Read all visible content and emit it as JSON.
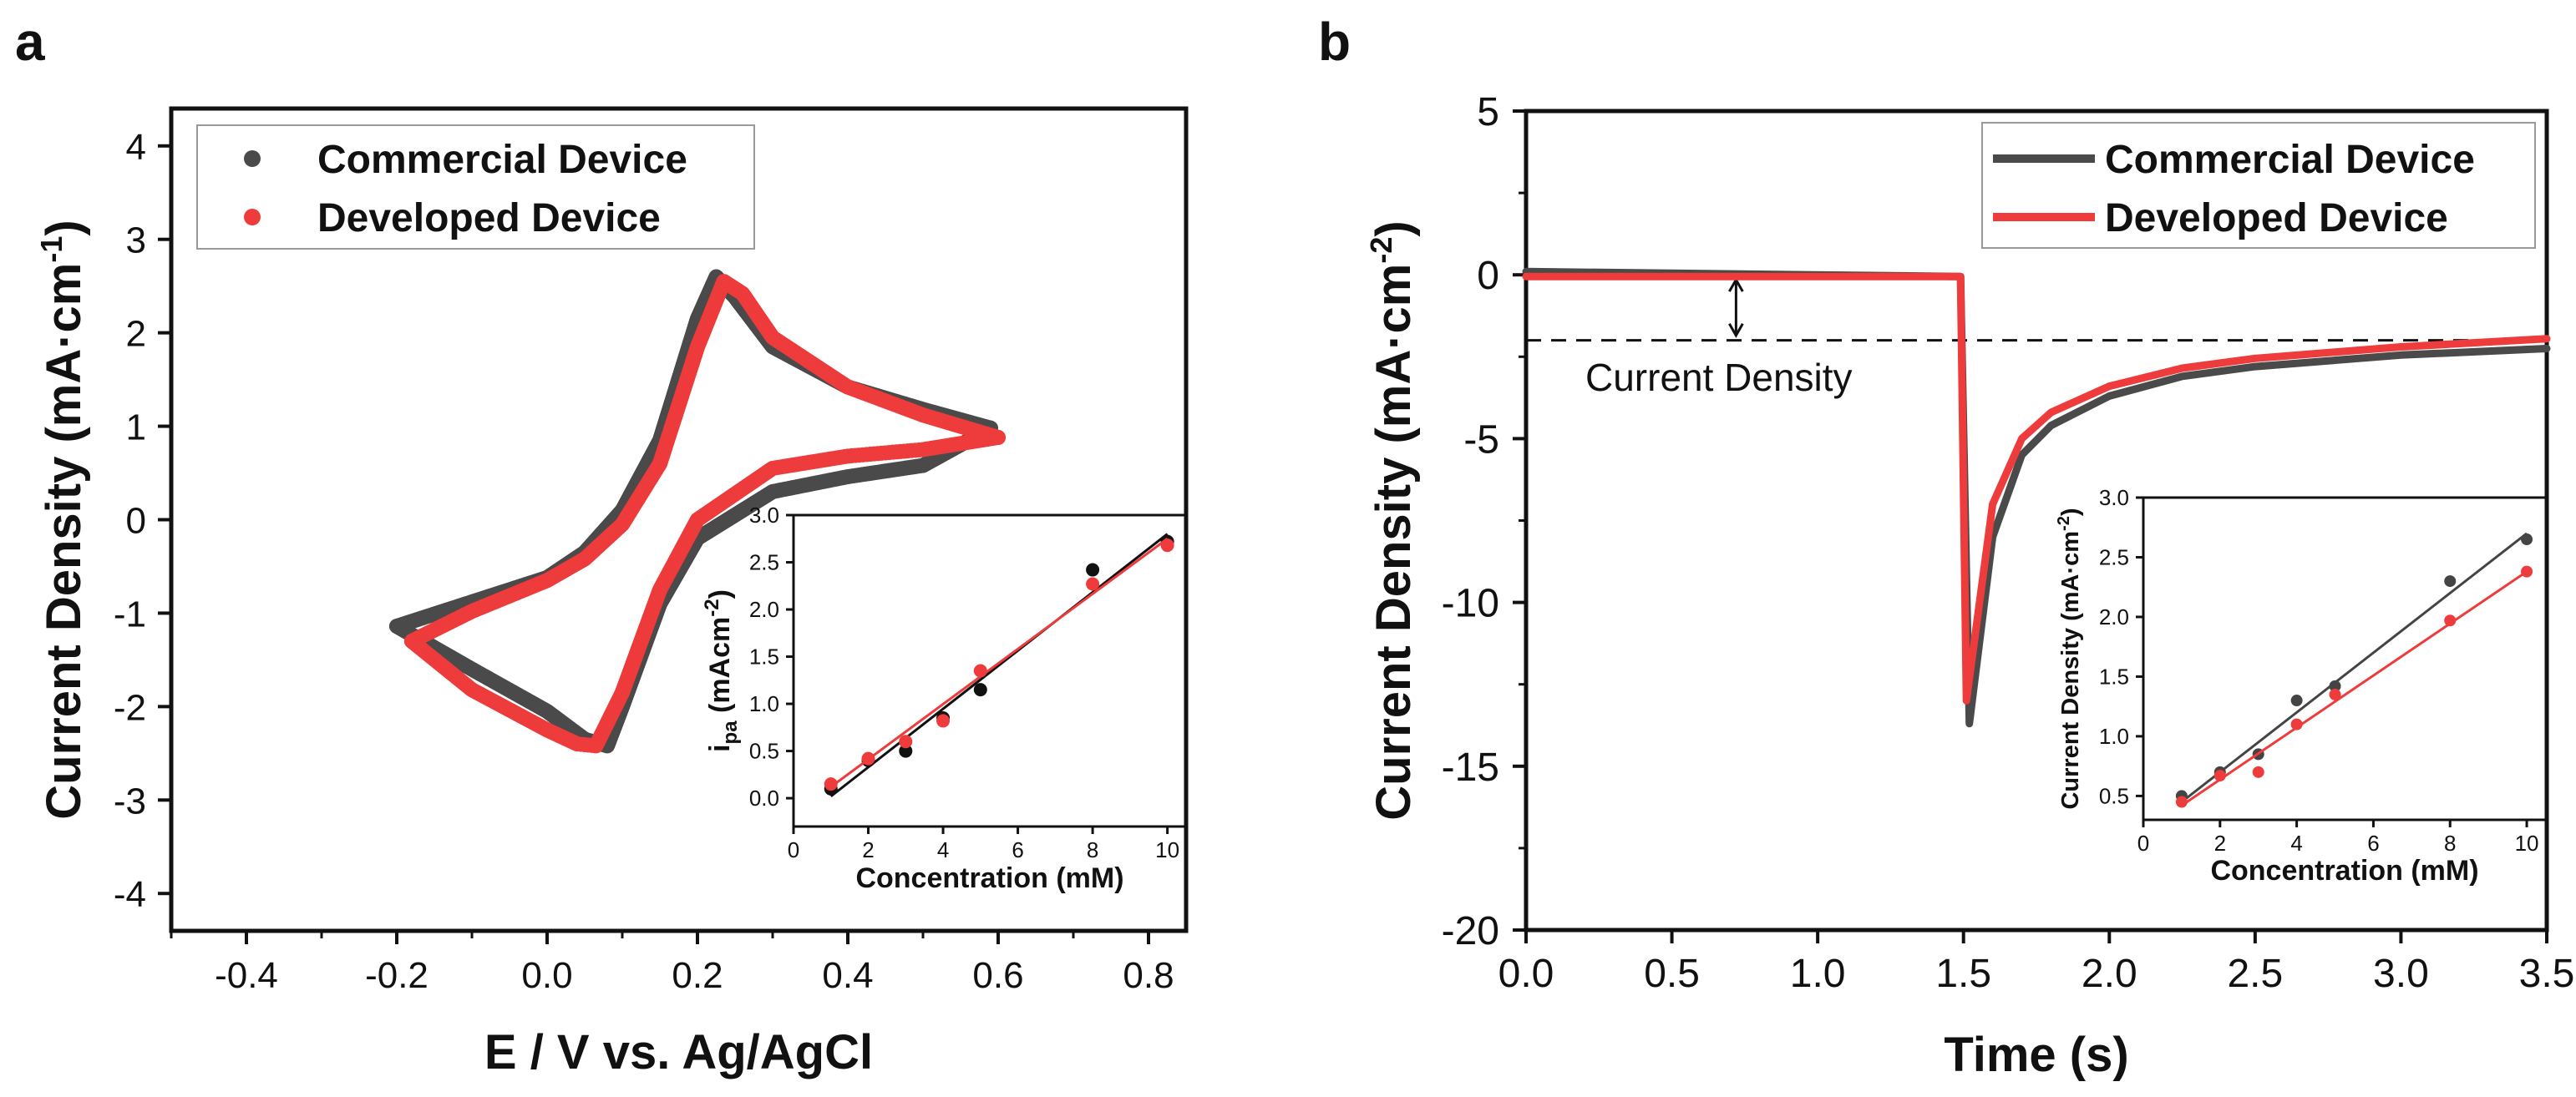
{
  "colors": {
    "commercial": "#4a4a4a",
    "developed": "#ee3b3b",
    "inset_black": "#111111",
    "inset_gray": "#444444",
    "dashed": "#111111"
  },
  "panel_a": {
    "letter": "a"
  },
  "panel_b": {
    "letter": "b"
  },
  "chart_data": [
    {
      "id": "a_main",
      "type": "scatter",
      "title": "",
      "xlabel": "E / V vs. Ag/AgCl",
      "ylabel": "Current Density (mA·cm",
      "ylabel_sup": "-1",
      "ylabel_close": ")",
      "xlim": [
        -0.5,
        0.85
      ],
      "ylim": [
        -4.4,
        4.4
      ],
      "xticks": [
        -0.4,
        -0.2,
        0.0,
        0.2,
        0.4,
        0.6,
        0.8
      ],
      "xtick_labels": [
        "-0.4",
        "-0.2",
        "0.0",
        "0.2",
        "0.4",
        "0.6",
        "0.8"
      ],
      "yticks": [
        -4,
        -3,
        -2,
        -1,
        0,
        1,
        2,
        3,
        4
      ],
      "ytick_labels": [
        "-4",
        "-3",
        "-2",
        "-1",
        "0",
        "1",
        "2",
        "3",
        "4"
      ],
      "legend_position": "top-left",
      "series": [
        {
          "name": "Commercial Device",
          "color": "#4a4a4a",
          "forward": [
            [
              -0.2,
              -1.14
            ],
            [
              -0.1,
              -0.88
            ],
            [
              0.0,
              -0.62
            ],
            [
              0.05,
              -0.35
            ],
            [
              0.1,
              0.1
            ],
            [
              0.15,
              0.85
            ],
            [
              0.2,
              2.15
            ],
            [
              0.225,
              2.6
            ],
            [
              0.25,
              2.38
            ],
            [
              0.3,
              1.85
            ],
            [
              0.4,
              1.42
            ],
            [
              0.5,
              1.18
            ],
            [
              0.59,
              0.98
            ]
          ],
          "reverse": [
            [
              0.59,
              0.98
            ],
            [
              0.5,
              0.58
            ],
            [
              0.4,
              0.46
            ],
            [
              0.3,
              0.3
            ],
            [
              0.2,
              -0.2
            ],
            [
              0.15,
              -0.9
            ],
            [
              0.1,
              -2.0
            ],
            [
              0.08,
              -2.42
            ],
            [
              0.05,
              -2.35
            ],
            [
              0.0,
              -2.05
            ],
            [
              -0.1,
              -1.6
            ],
            [
              -0.2,
              -1.14
            ]
          ]
        },
        {
          "name": "Developed Device",
          "color": "#ee3b3b",
          "forward": [
            [
              -0.18,
              -1.3
            ],
            [
              -0.1,
              -0.98
            ],
            [
              0.0,
              -0.65
            ],
            [
              0.05,
              -0.42
            ],
            [
              0.1,
              -0.05
            ],
            [
              0.15,
              0.6
            ],
            [
              0.2,
              1.85
            ],
            [
              0.235,
              2.55
            ],
            [
              0.26,
              2.42
            ],
            [
              0.3,
              1.95
            ],
            [
              0.4,
              1.42
            ],
            [
              0.5,
              1.12
            ],
            [
              0.6,
              0.88
            ]
          ],
          "reverse": [
            [
              0.6,
              0.88
            ],
            [
              0.5,
              0.75
            ],
            [
              0.4,
              0.68
            ],
            [
              0.3,
              0.55
            ],
            [
              0.2,
              0.0
            ],
            [
              0.15,
              -0.75
            ],
            [
              0.1,
              -1.85
            ],
            [
              0.065,
              -2.42
            ],
            [
              0.04,
              -2.4
            ],
            [
              0.0,
              -2.25
            ],
            [
              -0.1,
              -1.82
            ],
            [
              -0.18,
              -1.3
            ]
          ]
        }
      ]
    },
    {
      "id": "a_inset",
      "type": "scatter",
      "xlabel": "Concentration (mM)",
      "ylabel_main": "i",
      "ylabel_sub": "pa",
      "ylabel_rest": " (mAcm",
      "ylabel_sup": "-2",
      "ylabel_close": ")",
      "xlim": [
        0,
        10.5
      ],
      "ylim": [
        -0.3,
        3.0
      ],
      "xticks": [
        0,
        2,
        4,
        6,
        8,
        10
      ],
      "xtick_labels": [
        "0",
        "2",
        "4",
        "6",
        "8",
        "10"
      ],
      "yticks": [
        0.0,
        0.5,
        1.0,
        1.5,
        2.0,
        2.5,
        3.0
      ],
      "ytick_labels": [
        "0.0",
        "0.5",
        "1.0",
        "1.5",
        "2.0",
        "2.5",
        "3.0"
      ],
      "x": [
        1,
        2,
        3,
        4,
        5,
        8,
        10
      ],
      "series": [
        {
          "name": "Commercial Device",
          "color": "#111111",
          "values": [
            0.1,
            0.4,
            0.5,
            0.85,
            1.15,
            2.42,
            2.72
          ],
          "fit": [
            [
              1,
              0.02
            ],
            [
              10,
              2.8
            ]
          ]
        },
        {
          "name": "Developed Device",
          "color": "#ee3b3b",
          "values": [
            0.15,
            0.42,
            0.6,
            0.82,
            1.35,
            2.27,
            2.68
          ],
          "fit": [
            [
              1,
              0.12
            ],
            [
              10,
              2.75
            ]
          ]
        }
      ]
    },
    {
      "id": "b_main",
      "type": "line",
      "xlabel": "Time (s)",
      "ylabel": "Current Density (mA·cm",
      "ylabel_sup": "-2",
      "ylabel_close": ")",
      "xlim": [
        0,
        3.5
      ],
      "ylim": [
        -20,
        5
      ],
      "xticks": [
        0,
        0.5,
        1.0,
        1.5,
        2.0,
        2.5,
        3.0,
        3.5
      ],
      "xtick_labels": [
        "0.0",
        "0.5",
        "1.0",
        "1.5",
        "2.0",
        "2.5",
        "3.0",
        "3.5"
      ],
      "yticks": [
        5,
        0,
        -5,
        -10,
        -15,
        -20
      ],
      "ytick_labels": [
        "5",
        "0",
        "-5",
        "-10",
        "-15",
        "-20"
      ],
      "legend_position": "top-right",
      "annotation": {
        "text": "Current Density",
        "dashed_y": -2.0,
        "arrow_x": 0.72
      },
      "series": [
        {
          "name": "Commercial Device",
          "color": "#4a4a4a",
          "points": [
            [
              0,
              0.1
            ],
            [
              1.49,
              -0.05
            ],
            [
              1.52,
              -13.7
            ],
            [
              1.6,
              -8.0
            ],
            [
              1.7,
              -5.5
            ],
            [
              1.8,
              -4.6
            ],
            [
              2.0,
              -3.7
            ],
            [
              2.25,
              -3.1
            ],
            [
              2.5,
              -2.8
            ],
            [
              3.0,
              -2.45
            ],
            [
              3.5,
              -2.25
            ]
          ]
        },
        {
          "name": "Developed Device",
          "color": "#ee3b3b",
          "points": [
            [
              0,
              -0.05
            ],
            [
              1.49,
              -0.05
            ],
            [
              1.51,
              -13.0
            ],
            [
              1.6,
              -7.0
            ],
            [
              1.7,
              -5.0
            ],
            [
              1.8,
              -4.2
            ],
            [
              2.0,
              -3.4
            ],
            [
              2.25,
              -2.85
            ],
            [
              2.5,
              -2.55
            ],
            [
              3.0,
              -2.2
            ],
            [
              3.5,
              -1.95
            ]
          ]
        }
      ]
    },
    {
      "id": "b_inset",
      "type": "scatter",
      "xlabel": "Concentration (mM)",
      "ylabel": "Current Density (mA·cm",
      "ylabel_sup": "-2",
      "ylabel_close": ")",
      "xlim": [
        0,
        10.5
      ],
      "ylim": [
        0.3,
        3.0
      ],
      "xticks": [
        0,
        2,
        4,
        6,
        8,
        10
      ],
      "xtick_labels": [
        "0",
        "2",
        "4",
        "6",
        "8",
        "10"
      ],
      "yticks": [
        0.5,
        1.0,
        1.5,
        2.0,
        2.5,
        3.0
      ],
      "ytick_labels": [
        "0.5",
        "1.0",
        "1.5",
        "2.0",
        "2.5",
        "3.0"
      ],
      "x": [
        1,
        2,
        3,
        4,
        5,
        8,
        10
      ],
      "series": [
        {
          "name": "Commercial Device",
          "color": "#444444",
          "values": [
            0.5,
            0.7,
            0.85,
            1.3,
            1.42,
            2.3,
            2.65
          ],
          "fit": [
            [
              1,
              0.45
            ],
            [
              10,
              2.7
            ]
          ]
        },
        {
          "name": "Developed Device",
          "color": "#ee3b3b",
          "values": [
            0.45,
            0.67,
            0.7,
            1.1,
            1.35,
            1.97,
            2.38
          ],
          "fit": [
            [
              1,
              0.42
            ],
            [
              10,
              2.38
            ]
          ]
        }
      ]
    }
  ]
}
